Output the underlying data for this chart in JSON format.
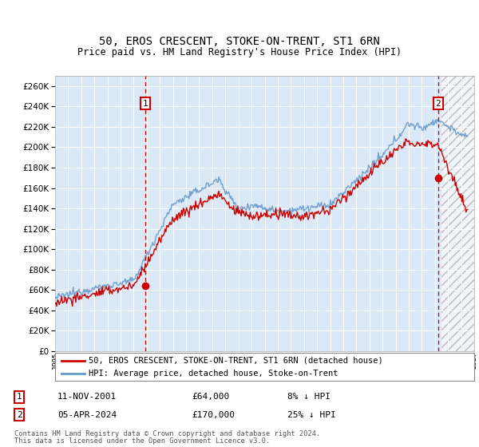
{
  "title": "50, EROS CRESCENT, STOKE-ON-TRENT, ST1 6RN",
  "subtitle": "Price paid vs. HM Land Registry's House Price Index (HPI)",
  "ylim": [
    0,
    270000
  ],
  "yticks": [
    0,
    20000,
    40000,
    60000,
    80000,
    100000,
    120000,
    140000,
    160000,
    180000,
    200000,
    220000,
    240000,
    260000
  ],
  "x_start_year": 1995,
  "x_end_year": 2027,
  "plot_bg": "#dbe8f5",
  "hpi_color": "#6699cc",
  "price_color": "#cc0000",
  "t1_year_float": 2001.875,
  "t1_price": 64000,
  "t1_hpi": 69000,
  "t2_year_float": 2024.25,
  "t2_price": 170000,
  "t2_hpi": 227000,
  "legend_line1": "50, EROS CRESCENT, STOKE-ON-TRENT, ST1 6RN (detached house)",
  "legend_line2": "HPI: Average price, detached house, Stoke-on-Trent",
  "t1_label": "1",
  "t1_note": "11-NOV-2001",
  "t1_amount": "£64,000",
  "t1_pct": "8% ↓ HPI",
  "t2_label": "2",
  "t2_note": "05-APR-2024",
  "t2_amount": "£170,000",
  "t2_pct": "25% ↓ HPI",
  "footer1": "Contains HM Land Registry data © Crown copyright and database right 2024.",
  "footer2": "This data is licensed under the Open Government Licence v3.0."
}
